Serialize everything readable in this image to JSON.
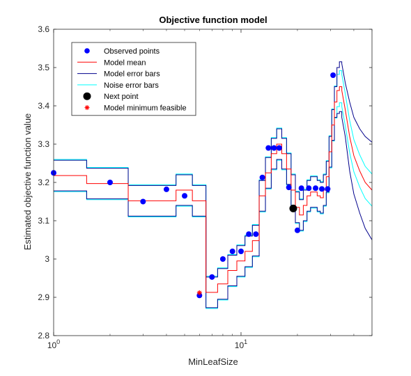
{
  "chart_data": {
    "type": "line",
    "title": "Objective function model",
    "xlabel": "MinLeafSize",
    "ylabel": "Estimated objective function value",
    "xscale": "log",
    "xlim": [
      1,
      50
    ],
    "ylim": [
      2.8,
      3.6
    ],
    "yticks": [
      "2.8",
      "2.9",
      "3",
      "3.1",
      "3.2",
      "3.3",
      "3.4",
      "3.5",
      "3.6"
    ],
    "xticks": [
      {
        "value": 1,
        "base": "10",
        "exp": "0"
      },
      {
        "value": 10,
        "base": "10",
        "exp": "1"
      }
    ],
    "grid": false,
    "legend_position": "top-left",
    "colors": {
      "observed": "#0000ff",
      "mean": "#ff0000",
      "model_err": "#00008b",
      "noise_err": "#00ffff",
      "next": "#000000",
      "minimum": "#ff0000"
    },
    "legend": [
      {
        "key": "observed",
        "label": "Observed points",
        "marker": "dot"
      },
      {
        "key": "mean",
        "label": "Model mean",
        "marker": "line"
      },
      {
        "key": "model_err",
        "label": "Model error bars",
        "marker": "line"
      },
      {
        "key": "noise_err",
        "label": "Noise error bars",
        "marker": "line"
      },
      {
        "key": "next",
        "label": "Next point",
        "marker": "bigdot"
      },
      {
        "key": "minimum",
        "label": "Model minimum feasible",
        "marker": "star"
      }
    ],
    "observed_points": [
      {
        "x": 1,
        "y": 3.225
      },
      {
        "x": 2,
        "y": 3.2
      },
      {
        "x": 3,
        "y": 3.15
      },
      {
        "x": 4,
        "y": 3.182
      },
      {
        "x": 5,
        "y": 3.165
      },
      {
        "x": 6,
        "y": 2.905
      },
      {
        "x": 7,
        "y": 2.953
      },
      {
        "x": 8,
        "y": 3.0
      },
      {
        "x": 9,
        "y": 3.02
      },
      {
        "x": 10,
        "y": 3.02
      },
      {
        "x": 11,
        "y": 3.065
      },
      {
        "x": 12,
        "y": 3.065
      },
      {
        "x": 13,
        "y": 3.213
      },
      {
        "x": 14,
        "y": 3.29
      },
      {
        "x": 15,
        "y": 3.29
      },
      {
        "x": 16,
        "y": 3.29
      },
      {
        "x": 18,
        "y": 3.187
      },
      {
        "x": 20,
        "y": 3.075
      },
      {
        "x": 21,
        "y": 3.185
      },
      {
        "x": 23,
        "y": 3.185
      },
      {
        "x": 25,
        "y": 3.185
      },
      {
        "x": 27,
        "y": 3.183
      },
      {
        "x": 29,
        "y": 3.183
      },
      {
        "x": 31,
        "y": 3.48
      }
    ],
    "next_point": {
      "x": 19,
      "y": 3.132
    },
    "model_minimum": {
      "x": 6,
      "y": 2.912
    },
    "curves": {
      "x": [
        1,
        1.5,
        1.5,
        2.5,
        2.5,
        3.5,
        3.5,
        4.5,
        4.5,
        5.5,
        5.5,
        6.5,
        6.5,
        7.5,
        7.5,
        8.5,
        8.5,
        9.5,
        9.5,
        10.5,
        10.5,
        11.5,
        11.5,
        12.5,
        12.5,
        13.5,
        13.5,
        14.5,
        14.5,
        15.5,
        15.5,
        16.5,
        16.5,
        17.5,
        17.5,
        18.5,
        18.5,
        19.5,
        19.5,
        20.5,
        20.5,
        21.5,
        21.5,
        22.5,
        22.5,
        23.5,
        23.5,
        24.5,
        24.5,
        25.5,
        25.5,
        26.5,
        26.5,
        27.5,
        27.5,
        28.5,
        28.5,
        29.5,
        29.5,
        30.5,
        30.5,
        31.5,
        31.5,
        32.5,
        32.5,
        33.5,
        33.5,
        34.5,
        34.5,
        36,
        38,
        40,
        43,
        46,
        50
      ],
      "mean": [
        3.218,
        3.218,
        3.197,
        3.197,
        3.152,
        3.152,
        3.152,
        3.152,
        3.18,
        3.18,
        3.152,
        3.152,
        2.913,
        2.913,
        2.935,
        2.935,
        2.97,
        2.97,
        2.995,
        2.995,
        3.02,
        3.02,
        3.048,
        3.048,
        3.165,
        3.165,
        3.225,
        3.225,
        3.275,
        3.275,
        3.3,
        3.3,
        3.275,
        3.275,
        3.235,
        3.235,
        3.18,
        3.18,
        3.135,
        3.135,
        3.115,
        3.115,
        3.14,
        3.14,
        3.165,
        3.165,
        3.175,
        3.175,
        3.175,
        3.175,
        3.165,
        3.165,
        3.16,
        3.16,
        3.18,
        3.18,
        3.215,
        3.215,
        3.28,
        3.28,
        3.35,
        3.35,
        3.41,
        3.41,
        3.44,
        3.44,
        3.45,
        3.45,
        3.44,
        3.39,
        3.32,
        3.27,
        3.23,
        3.2,
        3.18
      ],
      "model_upper": [
        3.258,
        3.258,
        3.237,
        3.237,
        3.192,
        3.192,
        3.192,
        3.192,
        3.22,
        3.22,
        3.192,
        3.192,
        2.953,
        2.953,
        2.975,
        2.975,
        3.01,
        3.01,
        3.035,
        3.035,
        3.06,
        3.06,
        3.088,
        3.088,
        3.205,
        3.205,
        3.265,
        3.265,
        3.315,
        3.315,
        3.34,
        3.34,
        3.315,
        3.315,
        3.275,
        3.275,
        3.22,
        3.22,
        3.175,
        3.175,
        3.155,
        3.155,
        3.18,
        3.18,
        3.205,
        3.205,
        3.215,
        3.215,
        3.215,
        3.215,
        3.205,
        3.205,
        3.2,
        3.2,
        3.22,
        3.22,
        3.255,
        3.255,
        3.32,
        3.32,
        3.39,
        3.39,
        3.45,
        3.45,
        3.5,
        3.5,
        3.515,
        3.515,
        3.51,
        3.46,
        3.41,
        3.37,
        3.34,
        3.32,
        3.305
      ],
      "model_lower": [
        3.178,
        3.178,
        3.157,
        3.157,
        3.112,
        3.112,
        3.112,
        3.112,
        3.14,
        3.14,
        3.112,
        3.112,
        2.873,
        2.873,
        2.895,
        2.895,
        2.93,
        2.93,
        2.955,
        2.955,
        2.98,
        2.98,
        3.008,
        3.008,
        3.125,
        3.125,
        3.185,
        3.185,
        3.235,
        3.235,
        3.26,
        3.26,
        3.235,
        3.235,
        3.195,
        3.195,
        3.14,
        3.14,
        3.095,
        3.095,
        3.075,
        3.075,
        3.1,
        3.1,
        3.125,
        3.125,
        3.135,
        3.135,
        3.135,
        3.135,
        3.125,
        3.125,
        3.12,
        3.12,
        3.14,
        3.14,
        3.175,
        3.175,
        3.24,
        3.24,
        3.31,
        3.31,
        3.37,
        3.37,
        3.38,
        3.38,
        3.385,
        3.385,
        3.37,
        3.32,
        3.23,
        3.17,
        3.12,
        3.08,
        3.05
      ],
      "noise_upper": [
        3.26,
        3.26,
        3.239,
        3.239,
        3.194,
        3.194,
        3.194,
        3.194,
        3.222,
        3.222,
        3.194,
        3.194,
        2.955,
        2.955,
        2.977,
        2.977,
        3.012,
        3.012,
        3.037,
        3.037,
        3.062,
        3.062,
        3.09,
        3.09,
        3.207,
        3.207,
        3.267,
        3.267,
        3.317,
        3.317,
        3.342,
        3.342,
        3.317,
        3.317,
        3.277,
        3.277,
        3.222,
        3.222,
        3.177,
        3.177,
        3.157,
        3.157,
        3.182,
        3.182,
        3.207,
        3.207,
        3.217,
        3.217,
        3.217,
        3.217,
        3.207,
        3.207,
        3.202,
        3.202,
        3.222,
        3.222,
        3.257,
        3.257,
        3.322,
        3.322,
        3.392,
        3.392,
        3.452,
        3.452,
        3.482,
        3.482,
        3.492,
        3.492,
        3.482,
        3.432,
        3.362,
        3.312,
        3.272,
        3.242,
        3.222
      ],
      "noise_lower": [
        3.176,
        3.176,
        3.155,
        3.155,
        3.11,
        3.11,
        3.11,
        3.11,
        3.138,
        3.138,
        3.11,
        3.11,
        2.871,
        2.871,
        2.893,
        2.893,
        2.928,
        2.928,
        2.953,
        2.953,
        2.978,
        2.978,
        3.006,
        3.006,
        3.123,
        3.123,
        3.183,
        3.183,
        3.233,
        3.233,
        3.258,
        3.258,
        3.233,
        3.233,
        3.193,
        3.193,
        3.138,
        3.138,
        3.093,
        3.093,
        3.073,
        3.073,
        3.098,
        3.098,
        3.123,
        3.123,
        3.133,
        3.133,
        3.133,
        3.133,
        3.123,
        3.123,
        3.118,
        3.118,
        3.138,
        3.138,
        3.173,
        3.173,
        3.238,
        3.238,
        3.308,
        3.308,
        3.368,
        3.368,
        3.398,
        3.398,
        3.408,
        3.408,
        3.398,
        3.348,
        3.278,
        3.228,
        3.188,
        3.158,
        3.138
      ]
    }
  }
}
